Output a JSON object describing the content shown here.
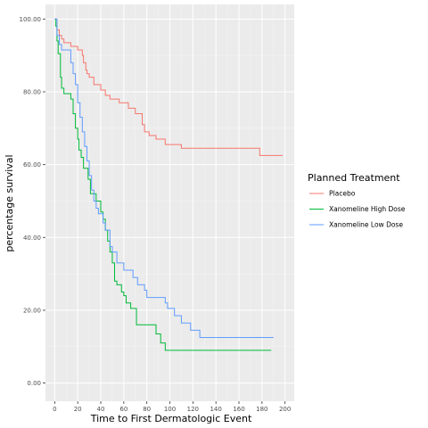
{
  "chart_data": {
    "type": "line",
    "subtype": "step",
    "title": "",
    "xlabel": "Time to First Dermatologic Event",
    "ylabel": "percentage survival",
    "xlim": [
      -8,
      208
    ],
    "ylim": [
      -5,
      104
    ],
    "x_ticks": [
      0,
      20,
      40,
      60,
      80,
      100,
      120,
      140,
      160,
      180,
      200
    ],
    "y_ticks": [
      0,
      20,
      40,
      60,
      80,
      100
    ],
    "y_tick_labels": [
      "0.00",
      "20.00",
      "40.00",
      "60.00",
      "80.00",
      "100.00"
    ],
    "grid": true,
    "background": "#ebebeb",
    "legend": {
      "title": "Planned Treatment",
      "position": "right",
      "entries": [
        "Placebo",
        "Xanomeline High Dose",
        "Xanomeline Low Dose"
      ]
    },
    "series": [
      {
        "name": "Placebo",
        "color": "#F8766D",
        "points": [
          [
            0,
            100
          ],
          [
            2,
            97
          ],
          [
            4,
            95.5
          ],
          [
            6,
            94.5
          ],
          [
            8,
            93.5
          ],
          [
            14,
            92.5
          ],
          [
            20,
            91.5
          ],
          [
            24,
            90
          ],
          [
            25,
            88
          ],
          [
            27,
            86
          ],
          [
            28,
            85
          ],
          [
            30,
            84
          ],
          [
            34,
            82
          ],
          [
            40,
            80.5
          ],
          [
            44,
            79
          ],
          [
            48,
            78
          ],
          [
            56,
            77
          ],
          [
            64,
            75.5
          ],
          [
            70,
            74
          ],
          [
            76,
            71
          ],
          [
            78,
            69
          ],
          [
            82,
            68
          ],
          [
            88,
            67
          ],
          [
            96,
            65.5
          ],
          [
            110,
            64.5
          ],
          [
            178,
            62.5
          ],
          [
            198,
            62.5
          ]
        ]
      },
      {
        "name": "Xanomeline High Dose",
        "color": "#00BA38",
        "points": [
          [
            0,
            100
          ],
          [
            1,
            98
          ],
          [
            2,
            94
          ],
          [
            3,
            90.5
          ],
          [
            5,
            84
          ],
          [
            6,
            81
          ],
          [
            8,
            79.5
          ],
          [
            14,
            78
          ],
          [
            16,
            74
          ],
          [
            18,
            70
          ],
          [
            20,
            67
          ],
          [
            21,
            64
          ],
          [
            23,
            62
          ],
          [
            25,
            59
          ],
          [
            29,
            56
          ],
          [
            31,
            52
          ],
          [
            36,
            50
          ],
          [
            40,
            47
          ],
          [
            42,
            45
          ],
          [
            44,
            42
          ],
          [
            46,
            39
          ],
          [
            48,
            36
          ],
          [
            50,
            33
          ],
          [
            52,
            28
          ],
          [
            54,
            27
          ],
          [
            58,
            25
          ],
          [
            60,
            24
          ],
          [
            62,
            22
          ],
          [
            66,
            20.5
          ],
          [
            71,
            16
          ],
          [
            88,
            13.5
          ],
          [
            92,
            11
          ],
          [
            96,
            9
          ],
          [
            188,
            9
          ]
        ]
      },
      {
        "name": "Xanomeline Low Dose",
        "color": "#619CFF",
        "points": [
          [
            0,
            100
          ],
          [
            2,
            95.5
          ],
          [
            4,
            93
          ],
          [
            6,
            91.5
          ],
          [
            14,
            88
          ],
          [
            16,
            85
          ],
          [
            18,
            82
          ],
          [
            20,
            77
          ],
          [
            22,
            73
          ],
          [
            24,
            69
          ],
          [
            26,
            65
          ],
          [
            28,
            61
          ],
          [
            30,
            57
          ],
          [
            32,
            53
          ],
          [
            34,
            50
          ],
          [
            36,
            48
          ],
          [
            38,
            46.5
          ],
          [
            42,
            44
          ],
          [
            44,
            42
          ],
          [
            48,
            37.5
          ],
          [
            50,
            36
          ],
          [
            54,
            33
          ],
          [
            60,
            31
          ],
          [
            68,
            29
          ],
          [
            72,
            27
          ],
          [
            78,
            25.5
          ],
          [
            80,
            23.5
          ],
          [
            96,
            22
          ],
          [
            98,
            20.5
          ],
          [
            104,
            18.5
          ],
          [
            110,
            16.5
          ],
          [
            118,
            14.5
          ],
          [
            126,
            12.5
          ],
          [
            190,
            12.5
          ]
        ]
      }
    ]
  }
}
